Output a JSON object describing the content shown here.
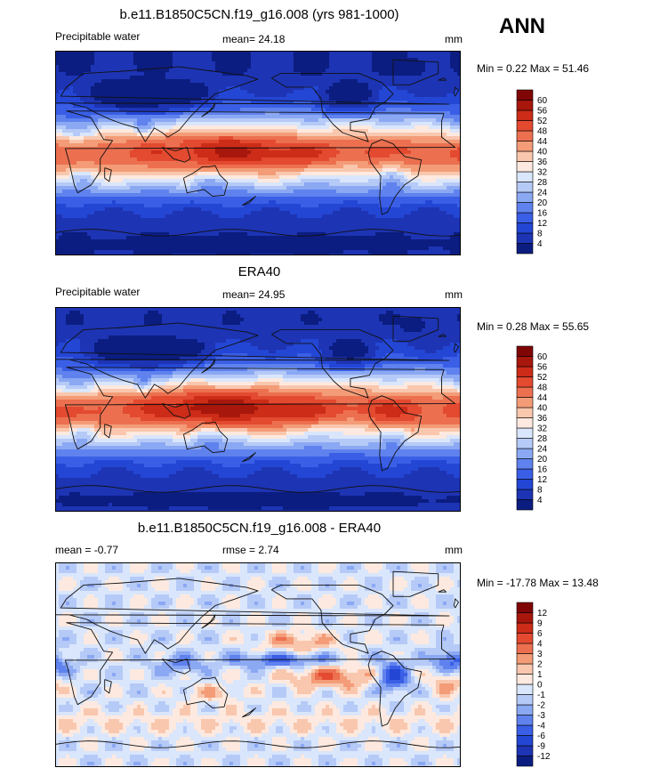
{
  "season": "ANN",
  "colors": {
    "seq": [
      "#0b1d80",
      "#1d34b4",
      "#2446d4",
      "#3a5fe6",
      "#5f82ee",
      "#8ba8f3",
      "#b6caf7",
      "#dae6fb",
      "#fde9df",
      "#f9c7ae",
      "#f39c77",
      "#ec7050",
      "#e34a30",
      "#cc2c18",
      "#a8170c",
      "#800606"
    ],
    "div": [
      "#0b1d80",
      "#1d34b4",
      "#2446d4",
      "#3a5fe6",
      "#5f82ee",
      "#8ba8f3",
      "#b6caf7",
      "#dae6fb",
      "#fde9df",
      "#f9c7ae",
      "#f39c77",
      "#ec7050",
      "#e34a30",
      "#cc2c18",
      "#a8170c",
      "#800606"
    ]
  },
  "panels": [
    {
      "title": "b.e11.B1850C5CN.f19_g16.008 (yrs 981-1000)",
      "left_label": "Precipitable water",
      "mean_label": "mean=  24.18",
      "units": "mm",
      "minmax": "Min =   0.22 Max =  51.46",
      "colorbar_labels": [
        "60",
        "56",
        "52",
        "48",
        "44",
        "40",
        "36",
        "32",
        "28",
        "24",
        "20",
        "16",
        "12",
        "8",
        "4"
      ],
      "field": "model",
      "min": 0.22,
      "max": 51.46
    },
    {
      "title": "ERA40",
      "left_label": "Precipitable water",
      "mean_label": "mean=  24.95",
      "units": "mm",
      "minmax": "Min =   0.28 Max =  55.65",
      "colorbar_labels": [
        "60",
        "56",
        "52",
        "48",
        "44",
        "40",
        "36",
        "32",
        "28",
        "24",
        "20",
        "16",
        "12",
        "8",
        "4"
      ],
      "field": "obs",
      "min": 0.28,
      "max": 55.65
    },
    {
      "title": "b.e11.B1850C5CN.f19_g16.008 - ERA40",
      "left_label": "mean =  -0.77",
      "mean_label": "rmse =   2.74",
      "units": "mm",
      "minmax": "Min = -17.78 Max =  13.48",
      "colorbar_labels": [
        "12",
        "9",
        "6",
        "4",
        "3",
        "2",
        "1",
        "0",
        "-1",
        "-2",
        "-3",
        "-4",
        "-6",
        "-9",
        "-12"
      ],
      "field": "diff",
      "min": -17.78,
      "max": 13.48
    }
  ]
}
